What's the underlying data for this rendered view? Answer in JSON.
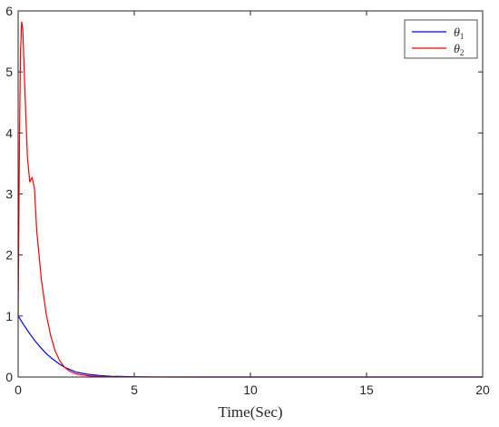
{
  "chart_data": {
    "type": "line",
    "title": "",
    "xlabel": "Time(Sec)",
    "ylabel": "",
    "xlim": [
      0,
      20
    ],
    "ylim": [
      0,
      6
    ],
    "xticks": [
      "0",
      "5",
      "10",
      "15",
      "20"
    ],
    "yticks": [
      "0",
      "1",
      "2",
      "3",
      "4",
      "5",
      "6"
    ],
    "grid": false,
    "legend_position": "top-right",
    "series": [
      {
        "name": "θ1",
        "name_base": "θ",
        "name_sub": "1",
        "color": "#0000ff",
        "x": [
          0,
          0.25,
          0.5,
          0.75,
          1.0,
          1.25,
          1.5,
          1.75,
          2.0,
          2.25,
          2.5,
          3.0,
          3.5,
          4.0,
          5.0,
          6.0,
          8.0,
          10.0,
          15.0,
          20.0
        ],
        "y": [
          1.0,
          0.85,
          0.71,
          0.58,
          0.47,
          0.37,
          0.29,
          0.22,
          0.16,
          0.12,
          0.08,
          0.045,
          0.025,
          0.012,
          0.004,
          0.001,
          0.0,
          0.0,
          0.0,
          0.0
        ]
      },
      {
        "name": "θ2",
        "name_base": "θ",
        "name_sub": "2",
        "color": "#ff0000",
        "x": [
          0,
          0.03,
          0.06,
          0.1,
          0.15,
          0.2,
          0.3,
          0.4,
          0.5,
          0.6,
          0.7,
          0.8,
          1.0,
          1.2,
          1.4,
          1.6,
          1.8,
          2.0,
          2.2,
          2.5,
          3.0,
          3.5,
          4.0,
          5.0,
          6.0,
          8.0,
          10.0,
          15.0,
          20.0
        ],
        "y": [
          1.0,
          2.5,
          4.0,
          5.3,
          5.82,
          5.7,
          4.6,
          3.6,
          3.2,
          3.27,
          3.1,
          2.4,
          1.6,
          1.05,
          0.68,
          0.42,
          0.26,
          0.16,
          0.1,
          0.05,
          0.02,
          0.008,
          0.003,
          0.001,
          0.0,
          0.0,
          0.0,
          0.0,
          0.0
        ]
      }
    ]
  }
}
